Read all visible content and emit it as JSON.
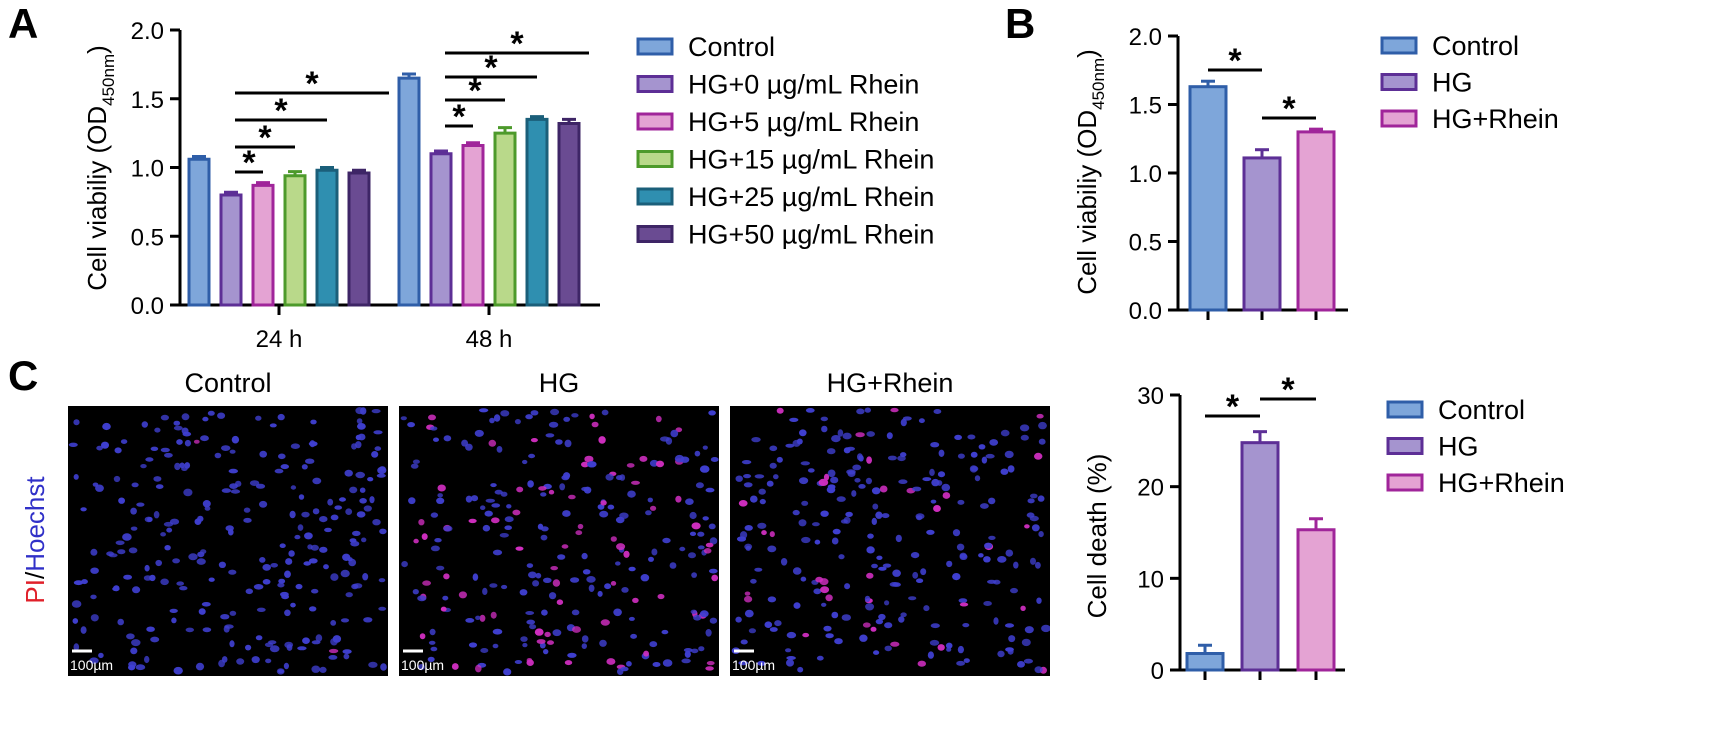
{
  "panels": {
    "A": "A",
    "B": "B",
    "C": "C"
  },
  "colors": {
    "Control": {
      "fill": "#7ea6da",
      "stroke": "#2f5ea8"
    },
    "HG+0 µg/mL Rhein": {
      "fill": "#a594cf",
      "stroke": "#5d2f96"
    },
    "HG+5 µg/mL Rhein": {
      "fill": "#e4a3d3",
      "stroke": "#a0259a"
    },
    "HG+15 µg/mL Rhein": {
      "fill": "#b9d98a",
      "stroke": "#4d9a2b"
    },
    "HG+25 µg/mL Rhein": {
      "fill": "#2f8fb0",
      "stroke": "#1b5f7a"
    },
    "HG+50 µg/mL Rhein": {
      "fill": "#6a4b92",
      "stroke": "#3e2566"
    },
    "HG": {
      "fill": "#a594cf",
      "stroke": "#5d2f96"
    },
    "HG+Rhein": {
      "fill": "#e4a3d3",
      "stroke": "#a0259a"
    }
  },
  "chart_data": [
    {
      "id": "A",
      "type": "bar",
      "ylabel": "Cell viabiliy (OD",
      "ylabel_sub": "450nm",
      "ylabel_end": ")",
      "ylim": [
        0,
        2.0
      ],
      "yticks": [
        "0.0",
        "0.5",
        "1.0",
        "1.5",
        "2.0"
      ],
      "categories": [
        "24 h",
        "48 h"
      ],
      "significance_marker": "*",
      "series": [
        {
          "name": "Control",
          "values": [
            1.06,
            1.65
          ],
          "errors": [
            0.02,
            0.03
          ]
        },
        {
          "name": "HG+0 µg/mL Rhein",
          "values": [
            0.8,
            1.1
          ],
          "errors": [
            0.02,
            0.02
          ]
        },
        {
          "name": "HG+5 µg/mL Rhein",
          "values": [
            0.87,
            1.16
          ],
          "errors": [
            0.02,
            0.02
          ]
        },
        {
          "name": "HG+15 µg/mL Rhein",
          "values": [
            0.94,
            1.25
          ],
          "errors": [
            0.03,
            0.04
          ]
        },
        {
          "name": "HG+25 µg/mL Rhein",
          "values": [
            0.98,
            1.35
          ],
          "errors": [
            0.02,
            0.02
          ]
        },
        {
          "name": "HG+50 µg/mL Rhein",
          "values": [
            0.96,
            1.32
          ],
          "errors": [
            0.02,
            0.03
          ]
        }
      ],
      "legend": [
        "Control",
        "HG+0 µg/mL Rhein",
        "HG+5 µg/mL Rhein",
        "HG+15 µg/mL Rhein",
        "HG+25 µg/mL Rhein",
        "HG+50 µg/mL Rhein"
      ],
      "comparisons": [
        {
          "category": 0,
          "from": 1,
          "to": 2
        },
        {
          "category": 0,
          "from": 1,
          "to": 3
        },
        {
          "category": 0,
          "from": 1,
          "to": 4
        },
        {
          "category": 0,
          "from": 1,
          "to": 5
        },
        {
          "category": 1,
          "from": 1,
          "to": 2
        },
        {
          "category": 1,
          "from": 1,
          "to": 3
        },
        {
          "category": 1,
          "from": 1,
          "to": 4
        },
        {
          "category": 1,
          "from": 1,
          "to": 5
        }
      ]
    },
    {
      "id": "B",
      "type": "bar",
      "ylabel": "Cell viabiliy (OD",
      "ylabel_sub": "450nm",
      "ylabel_end": ")",
      "ylim": [
        0,
        2.0
      ],
      "yticks": [
        "0.0",
        "0.5",
        "1.0",
        "1.5",
        "2.0"
      ],
      "significance_marker": "*",
      "series": [
        {
          "name": "Control",
          "value": 1.63,
          "error": 0.04
        },
        {
          "name": "HG",
          "value": 1.11,
          "error": 0.06
        },
        {
          "name": "HG+Rhein",
          "value": 1.3,
          "error": 0.02
        }
      ],
      "legend": [
        "Control",
        "HG",
        "HG+Rhein"
      ],
      "comparisons": [
        {
          "from": 0,
          "to": 1
        },
        {
          "from": 1,
          "to": 2
        }
      ]
    },
    {
      "id": "C",
      "type": "bar",
      "ylabel": "Cell death (%)",
      "ylim": [
        0,
        30
      ],
      "yticks": [
        "0",
        "10",
        "20",
        "30"
      ],
      "significance_marker": "*",
      "series": [
        {
          "name": "Control",
          "value": 1.8,
          "error": 0.9
        },
        {
          "name": "HG",
          "value": 24.8,
          "error": 1.2
        },
        {
          "name": "HG+Rhein",
          "value": 15.3,
          "error": 1.2
        }
      ],
      "legend": [
        "Control",
        "HG",
        "HG+Rhein"
      ],
      "comparisons": [
        {
          "from": 0,
          "to": 1
        },
        {
          "from": 1,
          "to": 2
        }
      ]
    }
  ],
  "micrographs": {
    "titles": [
      "Control",
      "HG",
      "HG+Rhein"
    ],
    "stain_label_pi": "PI",
    "stain_label_sep": "/",
    "stain_label_hoechst": "Hoechst",
    "scale_bar_label": "100µm",
    "nucleus_color": "#3f3fd0",
    "pi_color": "#d02ec0",
    "pi_positive_fraction": [
      0.02,
      0.25,
      0.15
    ]
  }
}
